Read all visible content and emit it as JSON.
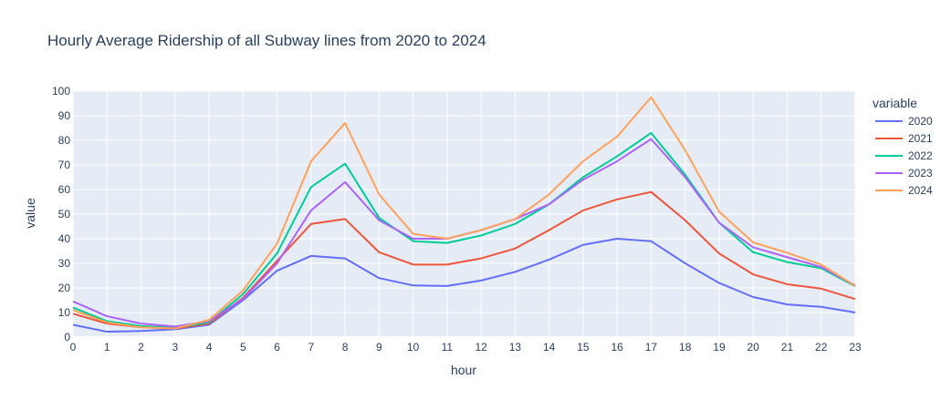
{
  "chart_data": {
    "type": "line",
    "title": "Hourly Average Ridership of all Subway lines from 2020 to 2024",
    "xlabel": "hour",
    "ylabel": "value",
    "xlim": [
      0,
      23
    ],
    "ylim": [
      0,
      100
    ],
    "x": [
      0,
      1,
      2,
      3,
      4,
      5,
      6,
      7,
      8,
      9,
      10,
      11,
      12,
      13,
      14,
      15,
      16,
      17,
      18,
      19,
      20,
      21,
      22,
      23
    ],
    "y_ticks": [
      0,
      10,
      20,
      30,
      40,
      50,
      60,
      70,
      80,
      90,
      100
    ],
    "grid": true,
    "legend": {
      "title": "variable",
      "position": "right"
    },
    "series": [
      {
        "name": "2020",
        "color": "#636efa",
        "values": [
          5,
          2.2,
          2.5,
          3.2,
          5,
          15,
          27,
          33,
          32,
          24,
          21,
          20.8,
          23,
          26.5,
          31.5,
          37.5,
          40,
          39,
          30,
          22,
          16.3,
          13.3,
          12.3,
          10
        ]
      },
      {
        "name": "2021",
        "color": "#ef553b",
        "values": [
          9.5,
          5.5,
          4,
          3.5,
          5.5,
          16,
          31,
          46,
          48,
          34.5,
          29.5,
          29.5,
          32,
          36,
          43.5,
          51.5,
          56,
          59,
          47.5,
          34,
          25.5,
          21.5,
          19.7,
          15.5
        ]
      },
      {
        "name": "2022",
        "color": "#00cc96",
        "values": [
          12,
          6.5,
          4.5,
          3.8,
          6,
          17.5,
          34,
          61,
          70.5,
          48.5,
          39,
          38.3,
          41.3,
          46,
          54,
          65,
          73.5,
          83,
          66,
          46.5,
          34.5,
          30.5,
          28,
          20.7
        ]
      },
      {
        "name": "2023",
        "color": "#ab63fa",
        "values": [
          14.5,
          8.5,
          5.5,
          4.3,
          6.5,
          15.5,
          30,
          51.5,
          63,
          47.5,
          40,
          40,
          43.5,
          48,
          54,
          64,
          71.5,
          80.5,
          65,
          46.5,
          36.5,
          32.5,
          28.5,
          21
        ]
      },
      {
        "name": "2024",
        "color": "#ffa15a",
        "values": [
          11,
          6,
          4,
          3.5,
          7,
          19,
          38,
          71.5,
          87,
          58,
          42,
          40,
          43.5,
          48,
          58,
          71.5,
          81.5,
          97.5,
          76,
          51,
          38.5,
          34.3,
          29.5,
          20.8
        ]
      }
    ]
  }
}
